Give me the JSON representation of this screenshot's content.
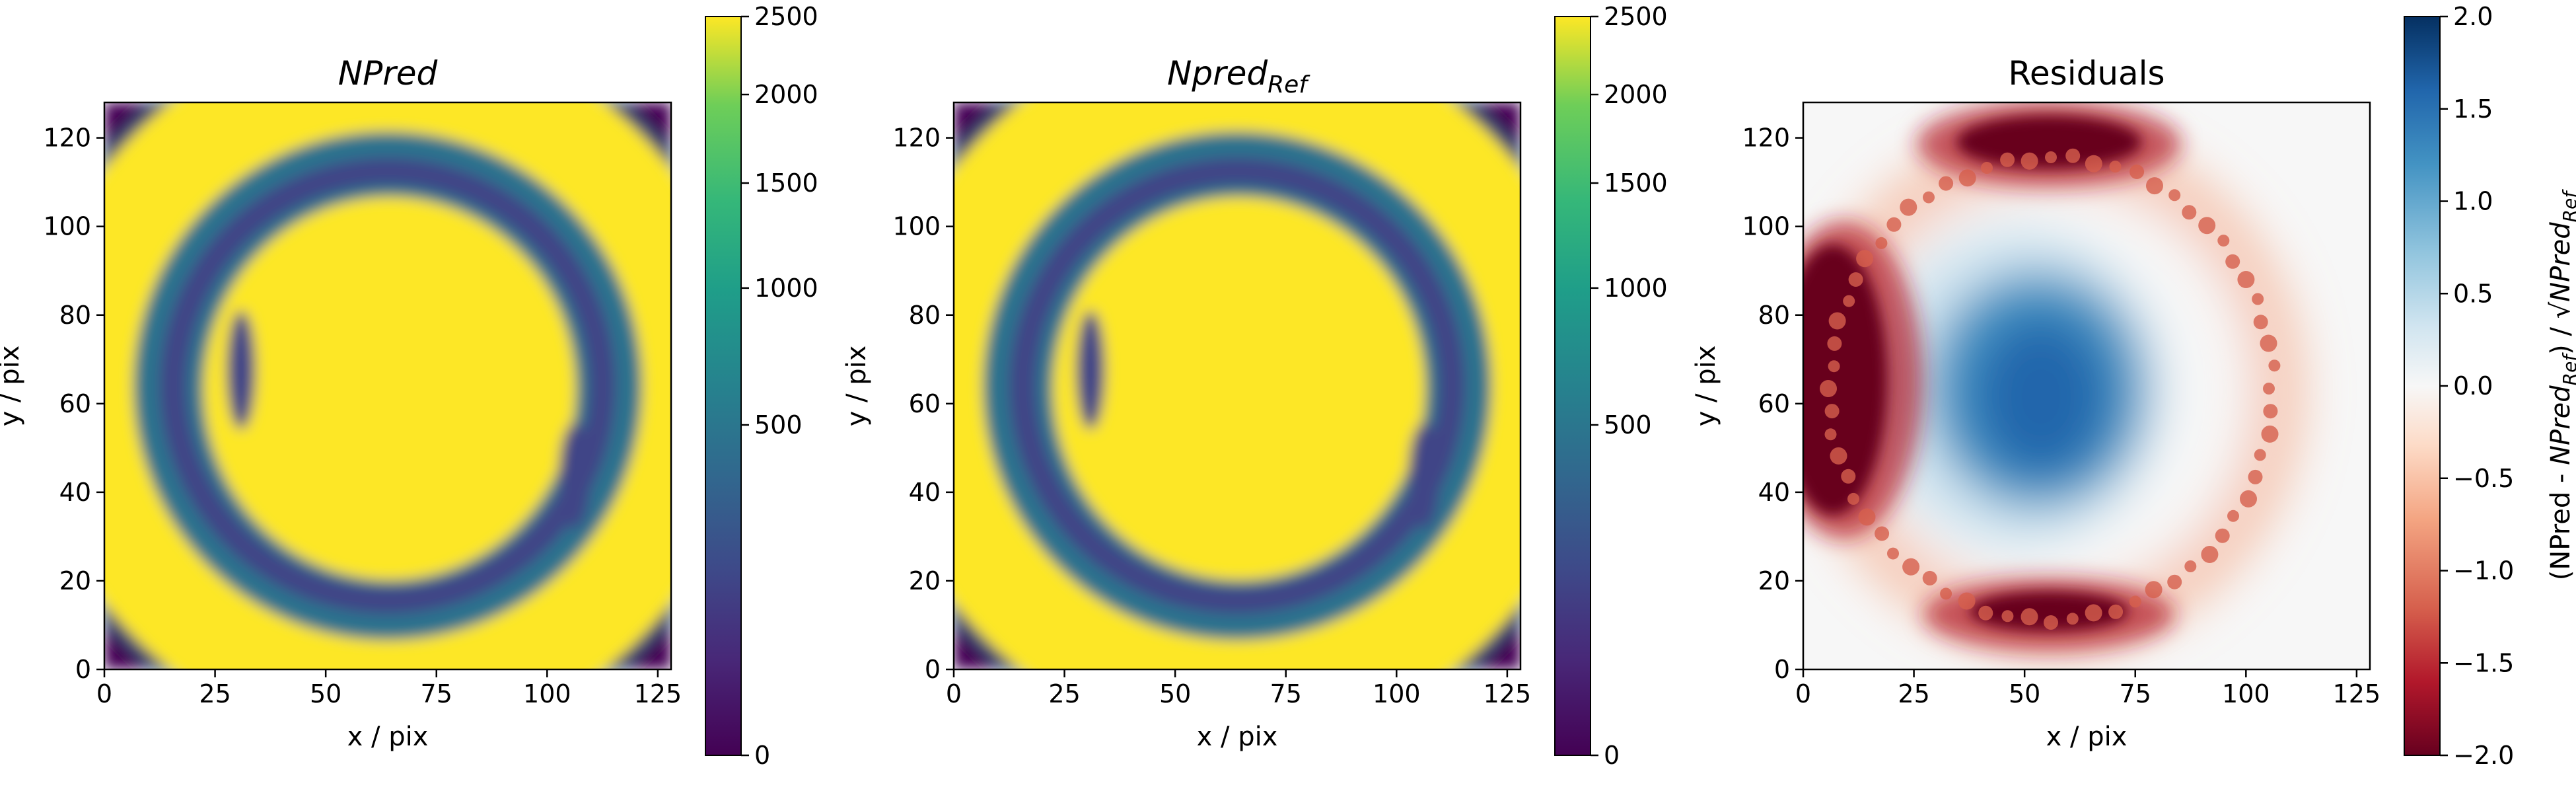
{
  "chart_data": [
    {
      "type": "heatmap",
      "title": "NPred",
      "xlabel": "x / pix",
      "ylabel": "y / pix",
      "xlim": [
        0,
        128
      ],
      "ylim": [
        0,
        128
      ],
      "xticks": [
        "0",
        "25",
        "50",
        "75",
        "100",
        "125"
      ],
      "yticks": [
        "0",
        "20",
        "40",
        "60",
        "80",
        "100",
        "120"
      ],
      "colormap": "viridis",
      "color_norm": "sqrt",
      "clim": [
        0,
        2500
      ],
      "colorbar_ticks": [
        "0",
        "500",
        "1000",
        "1500",
        "2000",
        "2500"
      ],
      "colorbar_label": ""
    },
    {
      "type": "heatmap",
      "title": "Npred",
      "title_subscript": "Ref",
      "xlabel": "x / pix",
      "ylabel": "y / pix",
      "xlim": [
        0,
        128
      ],
      "ylim": [
        0,
        128
      ],
      "xticks": [
        "0",
        "25",
        "50",
        "75",
        "100",
        "125"
      ],
      "yticks": [
        "0",
        "20",
        "40",
        "60",
        "80",
        "100",
        "120"
      ],
      "colormap": "viridis",
      "color_norm": "sqrt",
      "clim": [
        0,
        2500
      ],
      "colorbar_ticks": [
        "0",
        "500",
        "1000",
        "1500",
        "2000",
        "2500"
      ],
      "colorbar_label": ""
    },
    {
      "type": "heatmap",
      "title": "Residuals",
      "xlabel": "x / pix",
      "ylabel": "y / pix",
      "xlim": [
        0,
        128
      ],
      "ylim": [
        0,
        128
      ],
      "xticks": [
        "0",
        "25",
        "50",
        "75",
        "100",
        "125"
      ],
      "yticks": [
        "0",
        "20",
        "40",
        "60",
        "80",
        "100",
        "120"
      ],
      "colormap": "RdBu",
      "clim": [
        -2,
        2
      ],
      "colorbar_ticks": [
        "−2.0",
        "−1.5",
        "−1.0",
        "−0.5",
        "0.0",
        "0.5",
        "1.0",
        "1.5",
        "2.0"
      ],
      "colorbar_label": "(NPred - NPred_Ref) / √NPred_Ref"
    }
  ]
}
